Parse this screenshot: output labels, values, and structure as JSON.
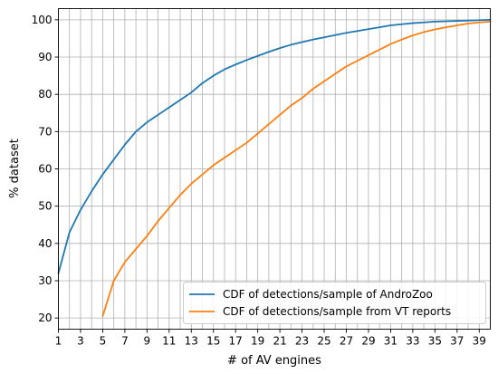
{
  "chart_data": {
    "type": "line",
    "xlabel": "# of AV engines",
    "ylabel": "% dataset",
    "xlim": [
      1,
      40
    ],
    "ylim": [
      17,
      103
    ],
    "xticks": [
      1,
      3,
      5,
      7,
      9,
      11,
      13,
      15,
      17,
      19,
      21,
      23,
      25,
      27,
      29,
      31,
      33,
      35,
      37,
      39
    ],
    "yticks": [
      20,
      30,
      40,
      50,
      60,
      70,
      80,
      90,
      100
    ],
    "grid": true,
    "legend_position": "bottom-right",
    "series": [
      {
        "name": "CDF of detections/sample of AndroZoo",
        "color": "#1f77b4",
        "x": [
          1,
          2,
          3,
          4,
          5,
          6,
          7,
          8,
          9,
          10,
          11,
          12,
          13,
          14,
          15,
          16,
          17,
          18,
          19,
          20,
          21,
          22,
          23,
          24,
          25,
          26,
          27,
          28,
          29,
          30,
          31,
          32,
          33,
          34,
          35,
          36,
          37,
          38,
          39,
          40
        ],
        "y": [
          32,
          43,
          49,
          54,
          58.5,
          62.5,
          66.5,
          70,
          72.5,
          74.5,
          76.5,
          78.5,
          80.5,
          83,
          85,
          86.7,
          88,
          89.2,
          90.3,
          91.4,
          92.4,
          93.3,
          94,
          94.7,
          95.3,
          95.9,
          96.5,
          97,
          97.5,
          98,
          98.5,
          98.8,
          99.1,
          99.3,
          99.5,
          99.6,
          99.7,
          99.8,
          99.9,
          100
        ]
      },
      {
        "name": "CDF of detections/sample from VT reports",
        "color": "#ff7f0e",
        "x": [
          5,
          6,
          7,
          8,
          9,
          10,
          11,
          12,
          13,
          14,
          15,
          16,
          17,
          18,
          19,
          20,
          21,
          22,
          23,
          24,
          25,
          26,
          27,
          28,
          29,
          30,
          31,
          32,
          33,
          34,
          35,
          36,
          37,
          38,
          39,
          40
        ],
        "y": [
          20.5,
          30,
          35,
          38.5,
          42,
          46,
          49.5,
          53,
          56,
          58.5,
          61,
          63,
          65,
          67,
          69.5,
          72,
          74.5,
          77,
          79,
          81.5,
          83.5,
          85.5,
          87.5,
          89,
          90.5,
          92,
          93.5,
          94.7,
          95.8,
          96.7,
          97.4,
          98,
          98.5,
          99,
          99.3,
          99.5
        ]
      }
    ]
  }
}
